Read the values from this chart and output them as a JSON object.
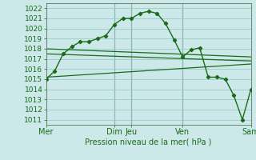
{
  "background_color": "#cce8e8",
  "grid_color": "#99cccc",
  "line_color": "#1a6b1a",
  "xlabel": "Pression niveau de la mer( hPa )",
  "ylim": [
    1010.5,
    1022.5
  ],
  "yticks": [
    1011,
    1012,
    1013,
    1014,
    1015,
    1016,
    1017,
    1018,
    1019,
    1020,
    1021,
    1022
  ],
  "x_tick_positions": [
    0,
    96,
    120,
    192,
    288
  ],
  "x_tick_labels": [
    "Mer",
    "Dim",
    "Jeu",
    "Ven",
    "Sam"
  ],
  "xlim": [
    0,
    288
  ],
  "series1_x": [
    0,
    12,
    24,
    36,
    48,
    60,
    72,
    84,
    96,
    108,
    120,
    132,
    144,
    156,
    168,
    180,
    192,
    204,
    216,
    228,
    240,
    252,
    264,
    276,
    288
  ],
  "series1_y": [
    1015.0,
    1015.8,
    1017.5,
    1018.2,
    1018.7,
    1018.7,
    1019.0,
    1019.3,
    1020.4,
    1021.0,
    1021.0,
    1021.5,
    1021.7,
    1021.5,
    1020.5,
    1018.9,
    1017.2,
    1017.9,
    1018.1,
    1015.2,
    1015.2,
    1015.0,
    1013.4,
    1011.0,
    1014.0
  ],
  "series2_x": [
    0,
    288
  ],
  "series2_y": [
    1018.0,
    1017.2
  ],
  "series3_x": [
    0,
    288
  ],
  "series3_y": [
    1017.5,
    1016.8
  ],
  "series4_x": [
    0,
    288
  ],
  "series4_y": [
    1015.2,
    1016.5
  ],
  "vline_x": [
    96,
    120,
    192
  ],
  "vline_color": "#336633",
  "ylabel_fontsize": 7.0,
  "ytick_fontsize": 6.5,
  "xtick_fontsize": 7.0
}
